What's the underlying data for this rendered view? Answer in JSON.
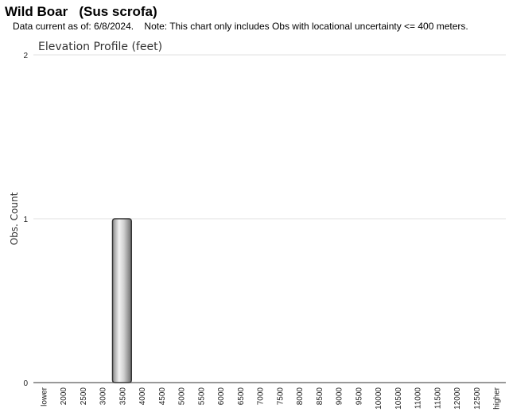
{
  "chart_data": {
    "type": "bar",
    "title": "Wild Boar   (Sus scrofa)",
    "subtitle": "Data current as of: 6/8/2024.    Note: This chart only includes Obs with locational uncertainty <= 400 meters.",
    "chart_title": "Elevation Profile (feet)",
    "y_label": "Obs. Count",
    "categories": [
      "lower",
      "2000",
      "2500",
      "3000",
      "3500",
      "4000",
      "4500",
      "5000",
      "5500",
      "6000",
      "6500",
      "7000",
      "7500",
      "8000",
      "8500",
      "9000",
      "9500",
      "10000",
      "10500",
      "11000",
      "11500",
      "12000",
      "12500",
      "higher"
    ],
    "values": [
      0,
      0,
      0,
      0,
      1,
      0,
      0,
      0,
      0,
      0,
      0,
      0,
      0,
      0,
      0,
      0,
      0,
      0,
      0,
      0,
      0,
      0,
      0,
      0
    ],
    "ylim": [
      0,
      2
    ],
    "yticks": [
      0,
      1,
      2
    ],
    "grid": true
  }
}
